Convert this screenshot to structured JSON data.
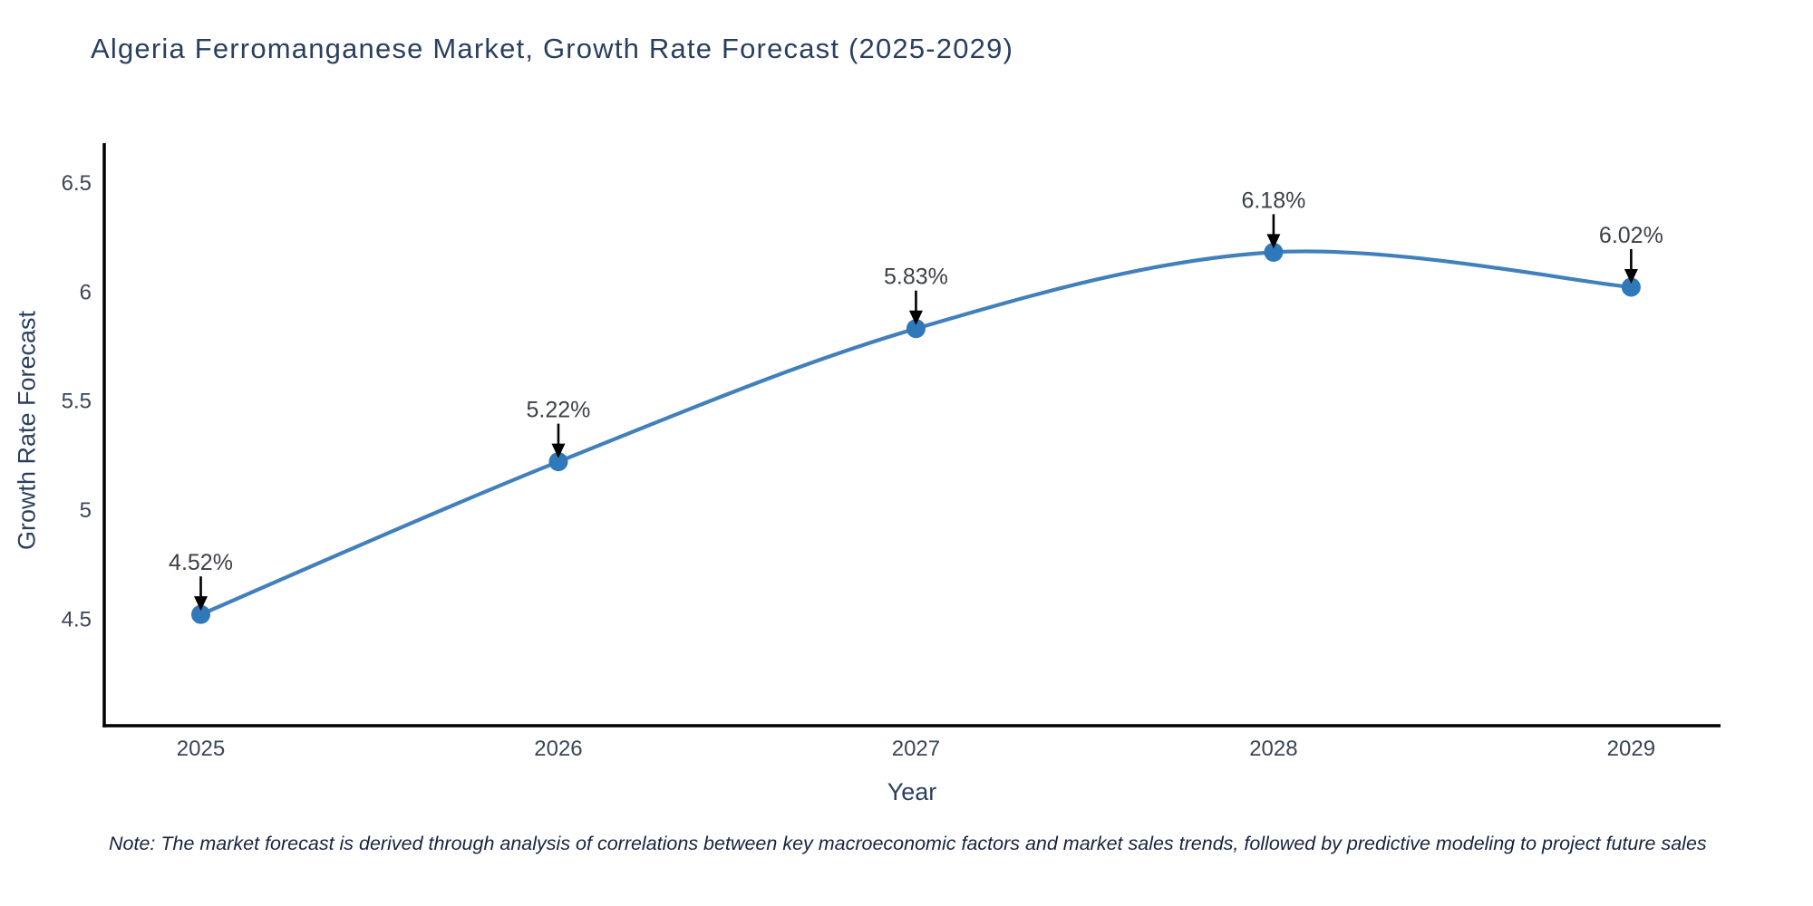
{
  "note": "Note: The market forecast is derived through analysis of correlations between key macroeconomic factors and market sales trends, followed by predictive modeling to project future sales",
  "chart_data": {
    "type": "line",
    "line_shape": "spline",
    "title": "Algeria Ferromanganese Market, Growth Rate Forecast (2025-2029)",
    "xlabel": "Year",
    "ylabel": "Growth Rate Forecast",
    "x": [
      2025,
      2026,
      2027,
      2028,
      2029
    ],
    "x_tick_labels": [
      "2025",
      "2026",
      "2027",
      "2028",
      "2029"
    ],
    "values": [
      4.52,
      5.22,
      5.83,
      6.18,
      6.02
    ],
    "point_labels": [
      "4.52%",
      "5.22%",
      "5.83%",
      "6.18%",
      "6.02%"
    ],
    "yticks": [
      6.5,
      6,
      5.5,
      5,
      4.5
    ],
    "y_tick_labels": [
      "6.5",
      "6",
      "5.5",
      "5",
      "4.5"
    ],
    "ylim": [
      4.01,
      6.68
    ],
    "xlim": [
      2024.73,
      2029.25
    ],
    "grid": false,
    "legend_position": "none",
    "annotations_have_arrows": true,
    "colors": {
      "line": "#4280bc",
      "marker": "#2f78b9",
      "axis_line": "#000000",
      "tick_text": "#3a4556",
      "title_text": "#2a3f5f",
      "annotation_text": "#3c4048",
      "arrow": "#000000",
      "background": "#ffffff"
    }
  }
}
